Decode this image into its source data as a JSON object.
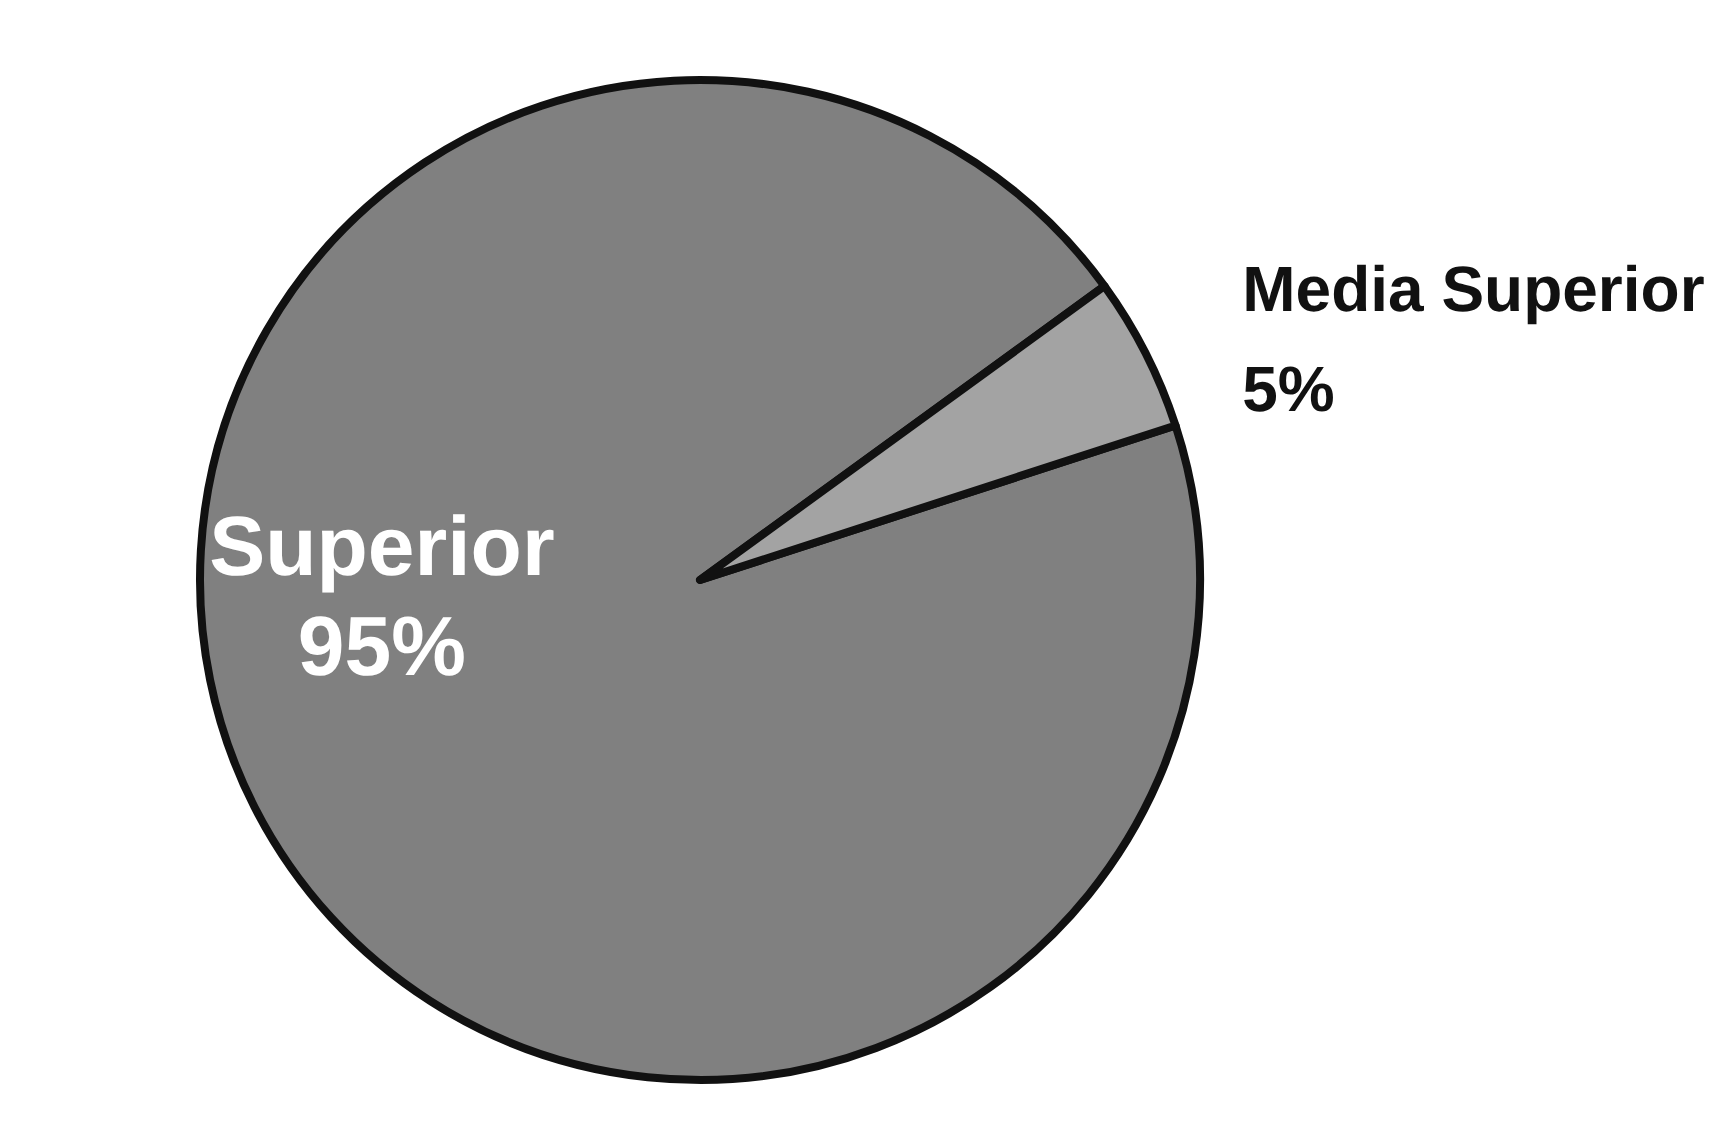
{
  "chart_data": {
    "type": "pie",
    "categories": [
      "Superior",
      "Media Superior"
    ],
    "values": [
      95,
      5
    ],
    "value_labels": [
      "95%",
      "5%"
    ],
    "colors": [
      "#808080",
      "#a3a3a3"
    ],
    "legend": false
  }
}
